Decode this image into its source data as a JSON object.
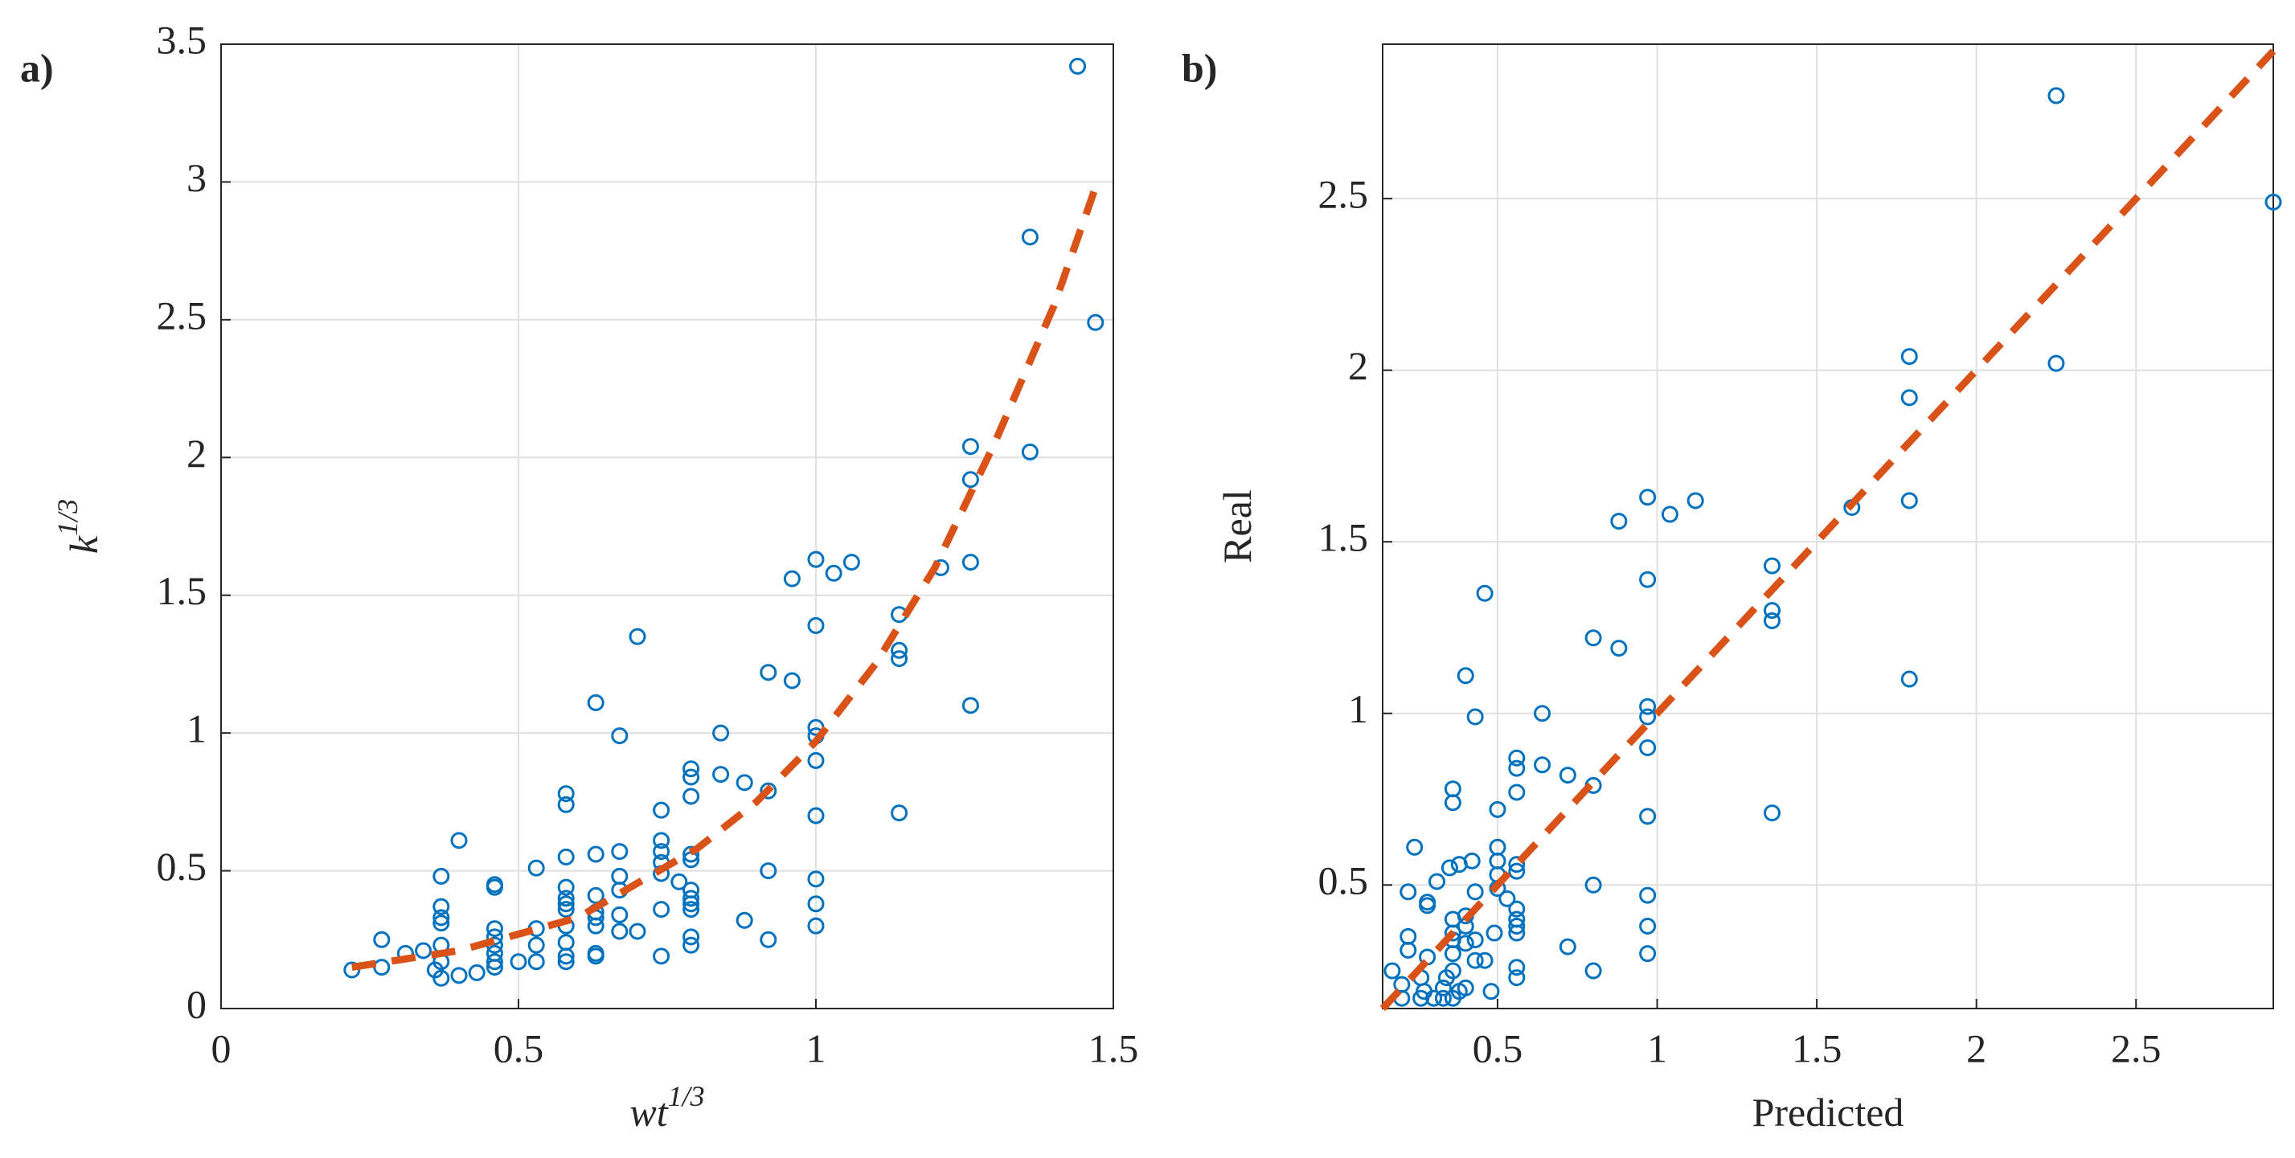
{
  "chart_data": [
    {
      "type": "scatter",
      "panel_label": "a)",
      "xlabel": {
        "base": "wt",
        "sup": "1/3"
      },
      "ylabel": {
        "base": "k",
        "sup": "1/3"
      },
      "xlim": [
        0,
        1.5
      ],
      "ylim": [
        0,
        3.5
      ],
      "xticks": [
        0,
        0.5,
        1,
        1.5
      ],
      "yticks": [
        0,
        0.5,
        1,
        1.5,
        2,
        2.5,
        3,
        3.5
      ],
      "grid": true,
      "color": "#0072bd",
      "x": [
        0.22,
        0.27,
        0.27,
        0.31,
        0.34,
        0.36,
        0.37,
        0.37,
        0.37,
        0.37,
        0.37,
        0.37,
        0.37,
        0.4,
        0.4,
        0.43,
        0.46,
        0.46,
        0.46,
        0.46,
        0.46,
        0.46,
        0.46,
        0.46,
        0.5,
        0.53,
        0.53,
        0.53,
        0.53,
        0.58,
        0.58,
        0.58,
        0.58,
        0.58,
        0.58,
        0.58,
        0.58,
        0.58,
        0.58,
        0.58,
        0.63,
        0.63,
        0.63,
        0.63,
        0.63,
        0.63,
        0.63,
        0.63,
        0.67,
        0.67,
        0.67,
        0.67,
        0.67,
        0.67,
        0.7,
        0.7,
        0.74,
        0.74,
        0.74,
        0.74,
        0.74,
        0.74,
        0.74,
        0.77,
        0.79,
        0.79,
        0.79,
        0.79,
        0.79,
        0.79,
        0.79,
        0.79,
        0.79,
        0.79,
        0.79,
        0.84,
        0.84,
        0.88,
        0.88,
        0.92,
        0.92,
        0.92,
        0.92,
        0.96,
        0.96,
        1.0,
        1.0,
        1.0,
        1.0,
        1.0,
        1.0,
        1.0,
        1.0,
        1.0,
        1.03,
        1.06,
        1.14,
        1.14,
        1.14,
        1.14,
        1.21,
        1.26,
        1.26,
        1.26,
        1.26,
        1.36,
        1.36,
        1.44,
        1.47
      ],
      "values": [
        0.14,
        0.15,
        0.25,
        0.2,
        0.21,
        0.14,
        0.11,
        0.17,
        0.23,
        0.31,
        0.33,
        0.37,
        0.48,
        0.12,
        0.61,
        0.13,
        0.15,
        0.17,
        0.2,
        0.23,
        0.26,
        0.29,
        0.44,
        0.45,
        0.17,
        0.17,
        0.23,
        0.29,
        0.51,
        0.17,
        0.19,
        0.24,
        0.3,
        0.36,
        0.38,
        0.4,
        0.44,
        0.55,
        0.74,
        0.78,
        0.19,
        0.2,
        0.3,
        0.33,
        0.35,
        0.41,
        0.56,
        1.11,
        0.28,
        0.34,
        0.43,
        0.48,
        0.57,
        0.99,
        0.28,
        1.35,
        0.19,
        0.36,
        0.49,
        0.53,
        0.57,
        0.61,
        0.72,
        0.46,
        0.23,
        0.26,
        0.36,
        0.38,
        0.4,
        0.43,
        0.54,
        0.56,
        0.77,
        0.84,
        0.87,
        0.85,
        1.0,
        0.32,
        0.82,
        0.25,
        0.5,
        0.79,
        1.22,
        1.19,
        1.56,
        0.3,
        0.38,
        0.47,
        0.7,
        0.9,
        0.99,
        1.02,
        1.39,
        1.63,
        1.58,
        1.62,
        0.71,
        1.27,
        1.3,
        1.43,
        1.6,
        1.1,
        1.62,
        1.92,
        2.04,
        2.02,
        2.8,
        3.42,
        2.49
      ],
      "fit": {
        "color": "#d95319",
        "x": [
          0.22,
          0.4,
          0.6,
          0.8,
          0.9,
          1.0,
          1.1,
          1.2,
          1.3,
          1.4,
          1.47
        ],
        "values": [
          0.15,
          0.21,
          0.33,
          0.58,
          0.75,
          0.97,
          1.25,
          1.6,
          2.05,
          2.55,
          2.98
        ]
      }
    },
    {
      "type": "scatter",
      "panel_label": "b)",
      "xlabel": {
        "base": "Predicted"
      },
      "ylabel": {
        "base": "Real"
      },
      "xlim": [
        0.14,
        2.93
      ],
      "ylim": [
        0.14,
        2.95
      ],
      "xticks": [
        0.5,
        1,
        1.5,
        2,
        2.5
      ],
      "yticks": [
        0.5,
        1,
        1.5,
        2,
        2.5
      ],
      "grid": true,
      "color": "#0072bd",
      "x": [
        0.17,
        0.2,
        0.2,
        0.22,
        0.22,
        0.22,
        0.24,
        0.26,
        0.26,
        0.27,
        0.28,
        0.28,
        0.28,
        0.3,
        0.31,
        0.33,
        0.33,
        0.34,
        0.35,
        0.36,
        0.36,
        0.36,
        0.36,
        0.36,
        0.36,
        0.36,
        0.36,
        0.38,
        0.38,
        0.4,
        0.4,
        0.4,
        0.4,
        0.4,
        0.42,
        0.43,
        0.43,
        0.43,
        0.43,
        0.46,
        0.46,
        0.48,
        0.49,
        0.5,
        0.5,
        0.5,
        0.5,
        0.5,
        0.53,
        0.56,
        0.56,
        0.56,
        0.56,
        0.56,
        0.56,
        0.56,
        0.56,
        0.56,
        0.56,
        0.56,
        0.64,
        0.64,
        0.72,
        0.72,
        0.8,
        0.8,
        0.8,
        0.8,
        0.88,
        0.88,
        0.97,
        0.97,
        0.97,
        0.97,
        0.97,
        0.97,
        0.97,
        0.97,
        0.97,
        1.04,
        1.12,
        1.36,
        1.36,
        1.36,
        1.36,
        1.61,
        1.79,
        1.79,
        1.79,
        1.79,
        2.25,
        2.25,
        2.93
      ],
      "values": [
        0.25,
        0.17,
        0.21,
        0.48,
        0.35,
        0.31,
        0.61,
        0.17,
        0.23,
        0.19,
        0.29,
        0.44,
        0.45,
        0.17,
        0.51,
        0.17,
        0.2,
        0.23,
        0.55,
        0.17,
        0.25,
        0.3,
        0.34,
        0.36,
        0.4,
        0.74,
        0.78,
        0.19,
        0.56,
        0.2,
        0.33,
        0.38,
        0.41,
        1.11,
        0.57,
        0.28,
        0.34,
        0.48,
        0.99,
        0.28,
        1.35,
        0.19,
        0.36,
        0.49,
        0.53,
        0.57,
        0.61,
        0.72,
        0.46,
        0.23,
        0.26,
        0.36,
        0.38,
        0.4,
        0.43,
        0.54,
        0.56,
        0.77,
        0.84,
        0.87,
        0.85,
        1.0,
        0.32,
        0.82,
        0.25,
        0.5,
        0.79,
        1.22,
        1.19,
        1.56,
        0.3,
        0.38,
        0.47,
        0.7,
        0.9,
        0.99,
        1.02,
        1.39,
        1.63,
        1.58,
        1.62,
        0.71,
        1.27,
        1.3,
        1.43,
        1.6,
        1.1,
        1.62,
        1.92,
        2.04,
        2.02,
        2.8,
        2.49
      ],
      "fit": {
        "color": "#d95319",
        "x": [
          0.14,
          2.93
        ],
        "values": [
          0.14,
          2.93
        ]
      }
    }
  ]
}
